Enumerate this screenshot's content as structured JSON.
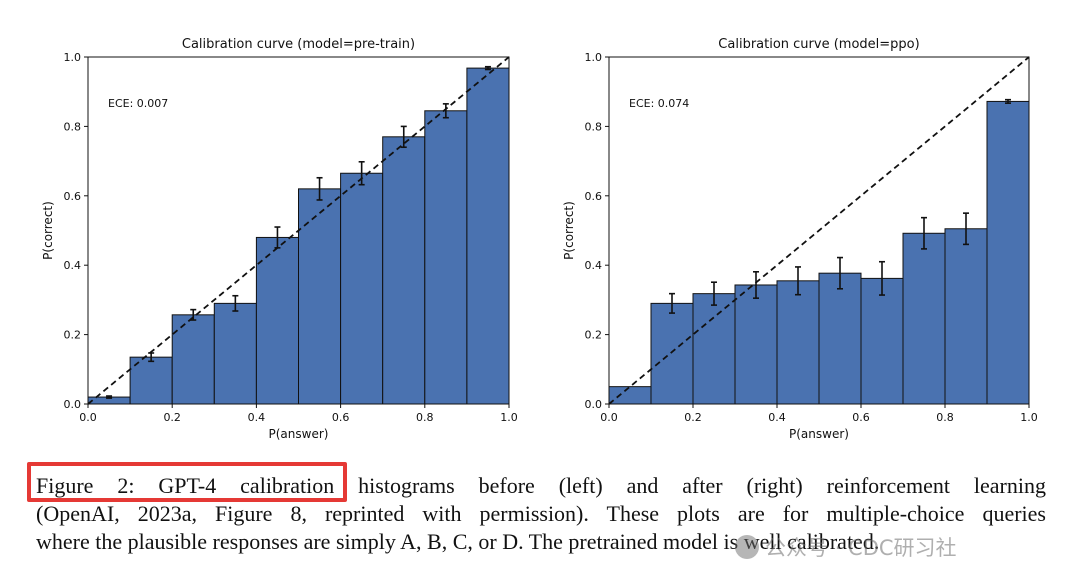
{
  "chart_data": [
    {
      "type": "bar",
      "title": "Calibration curve (model=pre-train)",
      "xlabel": "P(answer)",
      "ylabel": "P(correct)",
      "xlim": [
        0.0,
        1.0
      ],
      "ylim": [
        0.0,
        1.0
      ],
      "xticks": [
        "0.0",
        "0.2",
        "0.4",
        "0.6",
        "0.8",
        "1.0"
      ],
      "yticks": [
        "0.0",
        "0.2",
        "0.4",
        "0.6",
        "0.8",
        "1.0"
      ],
      "bin_edges": [
        0.0,
        0.1,
        0.2,
        0.3,
        0.4,
        0.5,
        0.6,
        0.7,
        0.8,
        0.9,
        1.0
      ],
      "values": [
        0.02,
        0.135,
        0.257,
        0.29,
        0.48,
        0.62,
        0.665,
        0.77,
        0.845,
        0.968
      ],
      "errors": [
        0.003,
        0.012,
        0.015,
        0.022,
        0.03,
        0.032,
        0.033,
        0.03,
        0.02,
        0.004
      ],
      "annotation": "ECE: 0.007",
      "diagonal": true,
      "bar_color": "#4a72b0"
    },
    {
      "type": "bar",
      "title": "Calibration curve (model=ppo)",
      "xlabel": "P(answer)",
      "ylabel": "P(correct)",
      "xlim": [
        0.0,
        1.0
      ],
      "ylim": [
        0.0,
        1.0
      ],
      "xticks": [
        "0.0",
        "0.2",
        "0.4",
        "0.6",
        "0.8",
        "1.0"
      ],
      "yticks": [
        "0.0",
        "0.2",
        "0.4",
        "0.6",
        "0.8",
        "1.0"
      ],
      "bin_edges": [
        0.0,
        0.1,
        0.2,
        0.3,
        0.4,
        0.5,
        0.6,
        0.7,
        0.8,
        0.9,
        1.0
      ],
      "values": [
        0.05,
        0.29,
        0.318,
        0.343,
        0.355,
        0.377,
        0.362,
        0.492,
        0.505,
        0.872
      ],
      "errors": [
        0.0,
        0.028,
        0.033,
        0.038,
        0.04,
        0.045,
        0.048,
        0.045,
        0.045,
        0.005
      ],
      "annotation": "ECE: 0.074",
      "diagonal": true,
      "bar_color": "#4a72b0"
    }
  ],
  "caption": {
    "line1": "Figure 2: GPT-4 calibration histograms before (left) and after (right) reinforcement learning",
    "line2": "(OpenAI, 2023a, Figure 8, reprinted with permission). These plots are for multiple-choice queries",
    "line3": "where the plausible responses are simply A, B, C, or D. The pretrained model is well calibrated."
  },
  "watermark": "公众号 · CDC研习社"
}
